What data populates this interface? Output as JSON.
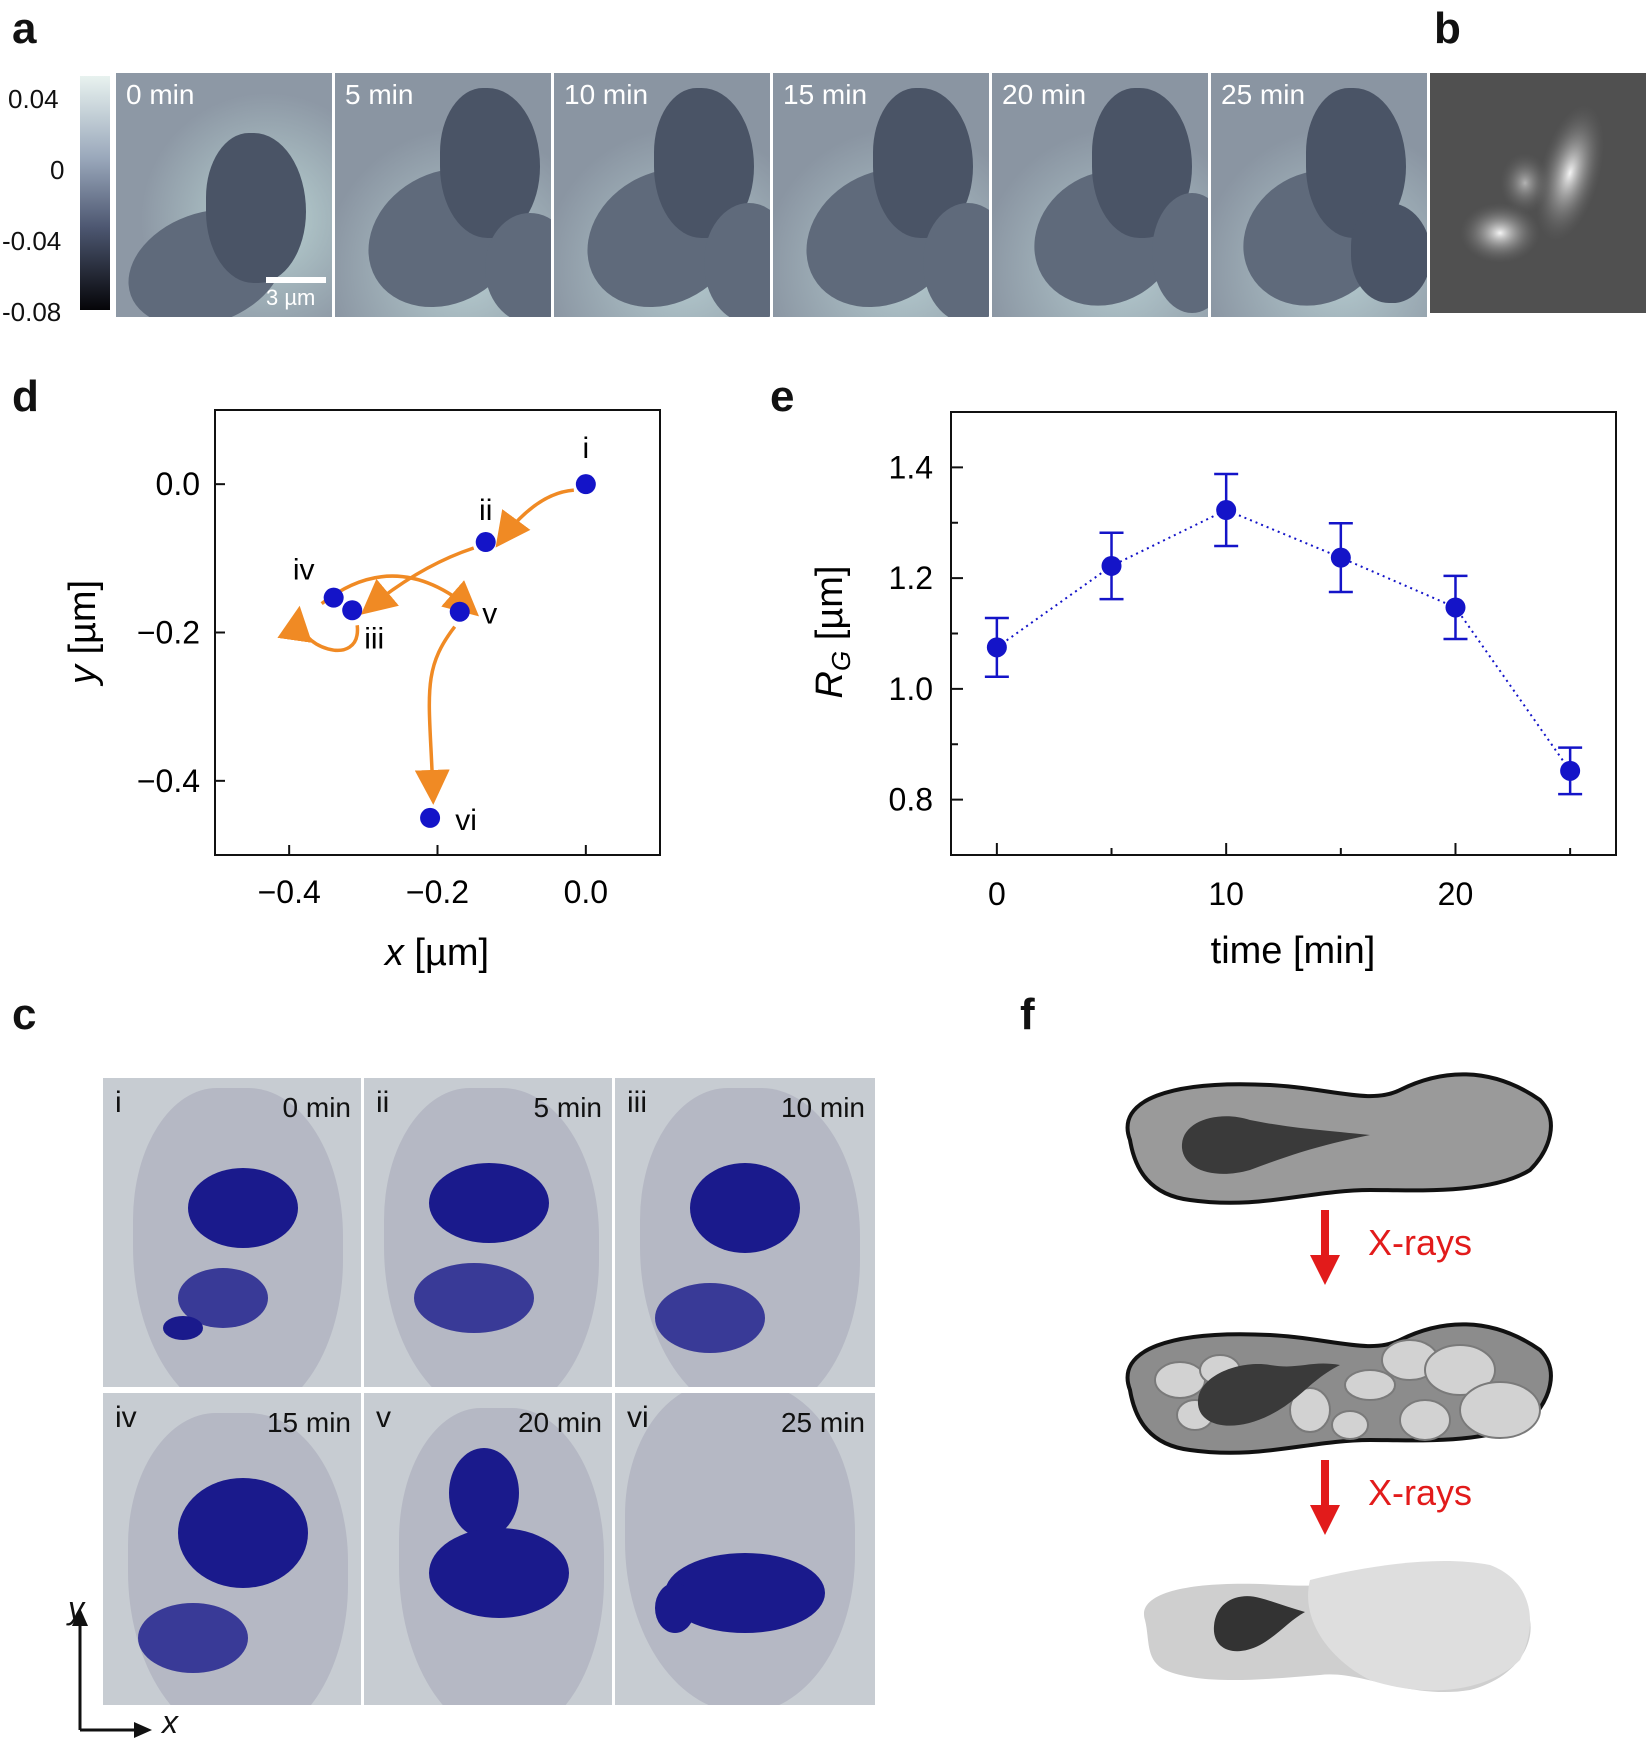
{
  "panels": {
    "a": "a",
    "b": "b",
    "c": "c",
    "d": "d",
    "e": "e",
    "f": "f"
  },
  "panel_a": {
    "colorbar_ticks": [
      "0.04",
      "0",
      "-0.04",
      "-0.08"
    ],
    "frame_times": [
      "0 min",
      "5 min",
      "10 min",
      "15 min",
      "20 min",
      "25 min"
    ],
    "scale_bar": "3 µm"
  },
  "panel_c": {
    "tiles": [
      {
        "roman": "i",
        "time": "0 min"
      },
      {
        "roman": "ii",
        "time": "5 min"
      },
      {
        "roman": "iii",
        "time": "10 min"
      },
      {
        "roman": "iv",
        "time": "15 min"
      },
      {
        "roman": "v",
        "time": "20 min"
      },
      {
        "roman": "vi",
        "time": "25 min"
      }
    ],
    "axis_y": "y",
    "axis_x": "x"
  },
  "panel_f": {
    "arrow_label_1": "X-rays",
    "arrow_label_2": "X-rays"
  },
  "chart_data": [
    {
      "id": "d",
      "type": "scatter",
      "xlabel_var": "x",
      "xlabel_unit": " [µm]",
      "ylabel_var": "y",
      "ylabel_unit": " [µm]",
      "xlim": [
        -0.5,
        0.1
      ],
      "ylim": [
        -0.5,
        0.1
      ],
      "xticks": [
        -0.4,
        -0.2,
        0.0
      ],
      "yticks": [
        0.0,
        -0.2,
        -0.4
      ],
      "xtick_labels": [
        "−0.4",
        "−0.2",
        "0.0"
      ],
      "ytick_labels": [
        "0.0",
        "−0.2",
        "−0.4"
      ],
      "points": [
        {
          "label": "i",
          "x": 0.0,
          "y": 0.0
        },
        {
          "label": "ii",
          "x": -0.135,
          "y": -0.078
        },
        {
          "label": "iii",
          "x": -0.315,
          "y": -0.17
        },
        {
          "label": "iv",
          "x": -0.34,
          "y": -0.153
        },
        {
          "label": "v",
          "x": -0.17,
          "y": -0.172
        },
        {
          "label": "vi",
          "x": -0.21,
          "y": -0.45
        }
      ],
      "point_color": "#1414c8",
      "arrow_color": "#f08a24"
    },
    {
      "id": "e",
      "type": "line",
      "xlabel": "time [min]",
      "ylabel_var": "R",
      "ylabel_sub": "G",
      "ylabel_unit": " [µm]",
      "xlim": [
        -2,
        27
      ],
      "ylim": [
        0.7,
        1.5
      ],
      "xticks": [
        0,
        10,
        20
      ],
      "yticks": [
        0.8,
        1.0,
        1.2,
        1.4
      ],
      "ytick_labels": [
        "0.8",
        "1.0",
        "1.2",
        "1.4"
      ],
      "xtick_labels": [
        "0",
        "10",
        "20"
      ],
      "x": [
        0,
        5,
        10,
        15,
        20,
        25
      ],
      "y": [
        1.075,
        1.222,
        1.323,
        1.237,
        1.147,
        0.852
      ],
      "err": [
        0.053,
        0.06,
        0.065,
        0.062,
        0.057,
        0.042
      ],
      "color": "#1414c8"
    }
  ]
}
